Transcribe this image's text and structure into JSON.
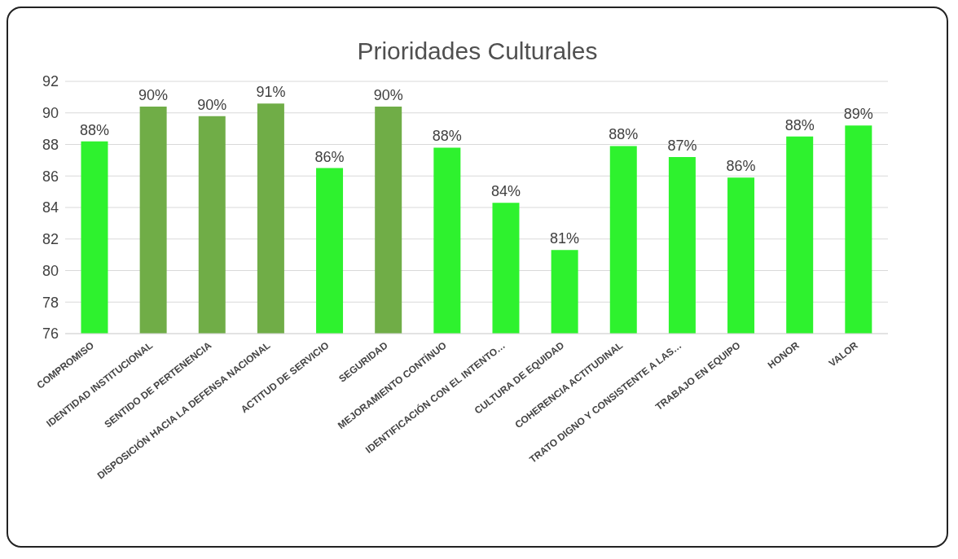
{
  "chart_data": {
    "type": "bar",
    "title": "Prioridades Culturales",
    "categories": [
      "COMPROMISO",
      "IDENTIDAD INSTITUCIONAL",
      "SENTIDO DE PERTENENCIA",
      "DISPOSICIÓN HACIA LA DEFENSA NACIONAL",
      "ACTITUD DE SERVICIO",
      "SEGURIDAD",
      "MEJORAMIENTO CONTÍNUO",
      "IDENTIFICACIÓN CON EL INTENTO…",
      "CULTURA DE EQUIDAD",
      "COHERENCIA ACTITUDINAL",
      "TRATO DIGNO Y CONSISTENTE A LAS…",
      "TRABAJO EN EQUIPO",
      "HONOR",
      "VALOR"
    ],
    "values": [
      88.2,
      90.4,
      89.8,
      90.6,
      86.5,
      90.4,
      87.8,
      84.3,
      81.3,
      87.9,
      87.2,
      85.9,
      88.5,
      89.2
    ],
    "value_labels": [
      "88%",
      "90%",
      "90%",
      "91%",
      "86%",
      "90%",
      "88%",
      "84%",
      "81%",
      "88%",
      "87%",
      "86%",
      "88%",
      "89%"
    ],
    "colors": [
      "#2ef22e",
      "#70ad47",
      "#70ad47",
      "#70ad47",
      "#2ef22e",
      "#70ad47",
      "#2ef22e",
      "#2ef22e",
      "#2ef22e",
      "#2ef22e",
      "#2ef22e",
      "#2ef22e",
      "#2ef22e",
      "#2ef22e"
    ],
    "ylim": [
      76,
      92
    ],
    "yticks": [
      76,
      78,
      80,
      82,
      84,
      86,
      88,
      90,
      92
    ],
    "grid": "y",
    "legend": false
  }
}
